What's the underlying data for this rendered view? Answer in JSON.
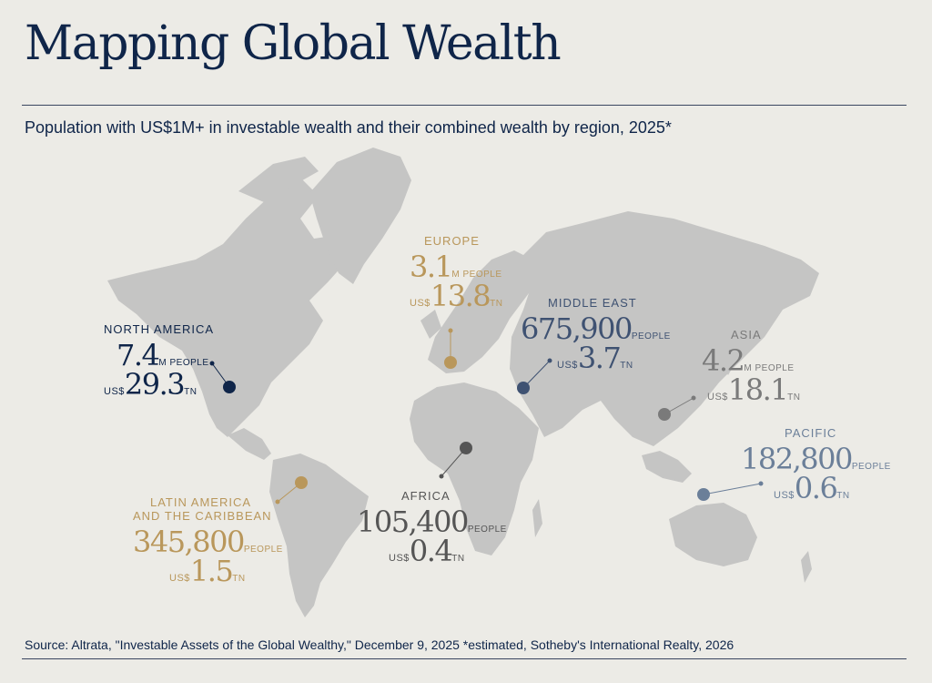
{
  "title": "Mapping Global Wealth",
  "subtitle": "Population with US$1M+ in investable wealth and their combined wealth by region, 2025*",
  "source": "Source: Altrata, \"Investable Assets of the Global Wealthy,\" December 9, 2025  *estimated, Sotheby's International Realty, 2026",
  "units": {
    "m_people": "M PEOPLE",
    "people": "PEOPLE",
    "currency": "US$",
    "trillion": "TN"
  },
  "colors": {
    "background": "#ecebe6",
    "land": "#c5c5c4",
    "north_america": "#0f2549",
    "europe": "#b9975b",
    "middle_east": "#3f5272",
    "asia": "#7a7a7a",
    "pacific": "#6b7f99",
    "africa": "#555555",
    "latin_america": "#b9975b"
  },
  "regions": {
    "north_america": {
      "name": "NORTH AMERICA",
      "people": "7.4",
      "wealth": "29.3"
    },
    "europe": {
      "name": "EUROPE",
      "people": "3.1",
      "wealth": "13.8"
    },
    "middle_east": {
      "name": "MIDDLE EAST",
      "people": "675,900",
      "wealth": "3.7"
    },
    "asia": {
      "name": "ASIA",
      "people": "4.2",
      "wealth": "18.1"
    },
    "pacific": {
      "name": "PACIFIC",
      "people": "182,800",
      "wealth": "0.6"
    },
    "africa": {
      "name": "AFRICA",
      "people": "105,400",
      "wealth": "0.4"
    },
    "latin_america": {
      "name_line1": "LATIN AMERICA",
      "name_line2": "AND THE CARIBBEAN",
      "people": "345,800",
      "wealth": "1.5"
    }
  }
}
